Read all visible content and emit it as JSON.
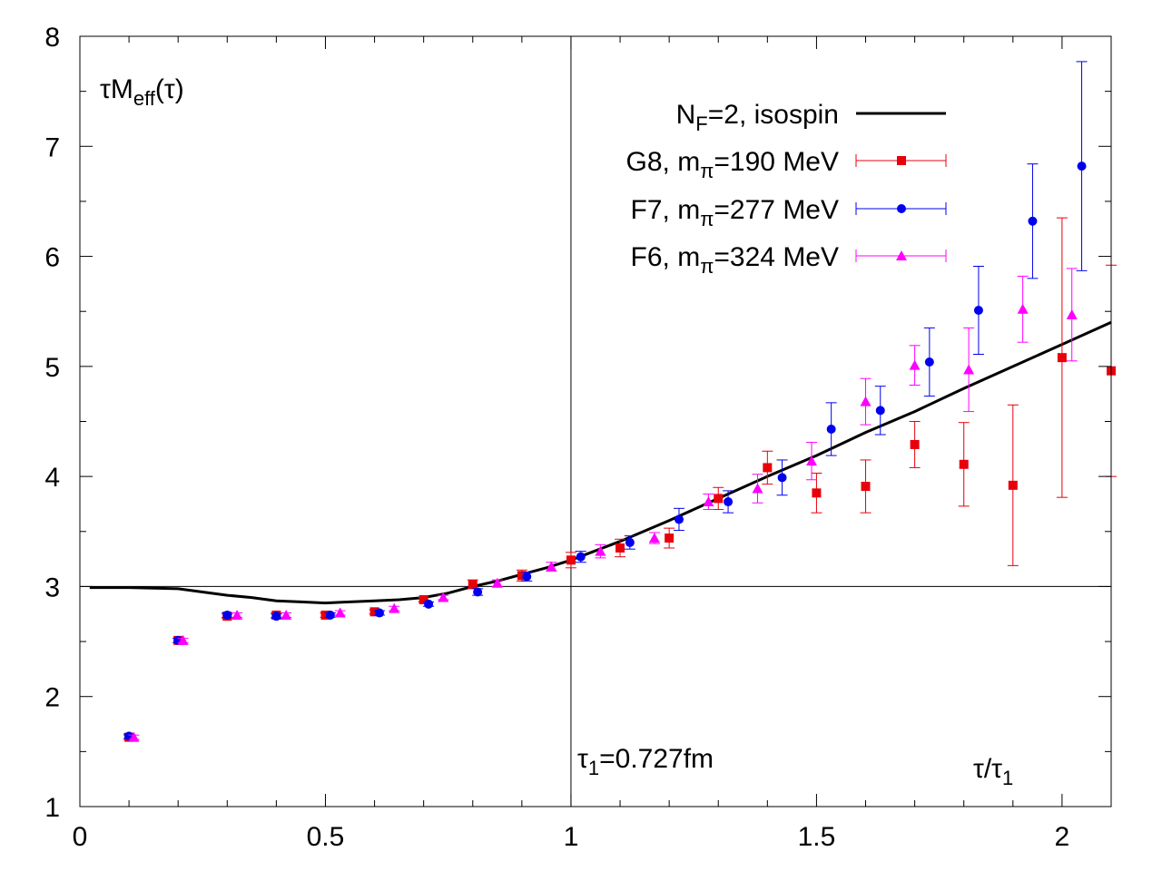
{
  "chart_data": {
    "type": "scatter",
    "title": "",
    "ylabel": "τM_eff(τ)",
    "xlabel": "τ/τ_1",
    "annotation": "τ_1=0.727fm",
    "xlim": [
      0,
      2.1
    ],
    "ylim": [
      1,
      8
    ],
    "x_ticks": [
      "0",
      "0.5",
      "1",
      "1.5",
      "2"
    ],
    "y_ticks": [
      "1",
      "2",
      "3",
      "4",
      "5",
      "6",
      "7",
      "8"
    ],
    "grid": false,
    "reference_lines": {
      "x": 1,
      "y": 3
    },
    "legend_position": "top-right",
    "series": [
      {
        "name": "N_F=2, isospin",
        "style": "line",
        "color": "#000000",
        "points": [
          [
            0.02,
            2.99
          ],
          [
            0.1,
            2.99
          ],
          [
            0.2,
            2.98
          ],
          [
            0.25,
            2.95
          ],
          [
            0.3,
            2.92
          ],
          [
            0.35,
            2.9
          ],
          [
            0.4,
            2.87
          ],
          [
            0.45,
            2.86
          ],
          [
            0.5,
            2.85
          ],
          [
            0.55,
            2.86
          ],
          [
            0.6,
            2.87
          ],
          [
            0.65,
            2.88
          ],
          [
            0.7,
            2.9
          ],
          [
            0.75,
            2.94
          ],
          [
            0.8,
            3.0
          ],
          [
            0.85,
            3.05
          ],
          [
            0.9,
            3.11
          ],
          [
            0.95,
            3.17
          ],
          [
            1.0,
            3.24
          ],
          [
            1.1,
            3.41
          ],
          [
            1.2,
            3.6
          ],
          [
            1.3,
            3.8
          ],
          [
            1.4,
            4.0
          ],
          [
            1.5,
            4.19
          ],
          [
            1.6,
            4.4
          ],
          [
            1.7,
            4.59
          ],
          [
            1.8,
            4.8
          ],
          [
            1.9,
            5.0
          ],
          [
            2.0,
            5.2
          ],
          [
            2.1,
            5.4
          ]
        ]
      },
      {
        "name": "G8, m_π=190 MeV",
        "style": "points",
        "marker": "square",
        "color": "#e8000b",
        "points": [
          [
            0.1,
            1.63,
            0.02
          ],
          [
            0.2,
            2.51,
            0.02
          ],
          [
            0.3,
            2.73,
            0.02
          ],
          [
            0.4,
            2.74,
            0.02
          ],
          [
            0.5,
            2.74,
            0.02
          ],
          [
            0.6,
            2.77,
            0.02
          ],
          [
            0.7,
            2.88,
            0.02
          ],
          [
            0.8,
            3.02,
            0.04
          ],
          [
            0.9,
            3.1,
            0.05
          ],
          [
            1.0,
            3.24,
            0.07
          ],
          [
            1.1,
            3.35,
            0.08
          ],
          [
            1.2,
            3.44,
            0.09
          ],
          [
            1.3,
            3.8,
            0.1
          ],
          [
            1.4,
            4.08,
            0.15
          ],
          [
            1.5,
            3.85,
            0.18
          ],
          [
            1.6,
            3.91,
            0.24
          ],
          [
            1.7,
            4.29,
            0.21
          ],
          [
            1.8,
            4.11,
            0.38
          ],
          [
            1.9,
            3.92,
            0.73
          ],
          [
            2.0,
            5.08,
            1.27
          ],
          [
            2.1,
            4.96,
            0.96
          ]
        ]
      },
      {
        "name": "F7, m_π=277 MeV",
        "style": "points",
        "marker": "circle",
        "color": "#0000ee",
        "points": [
          [
            0.1,
            1.64,
            0.02
          ],
          [
            0.2,
            2.51,
            0.02
          ],
          [
            0.3,
            2.74,
            0.02
          ],
          [
            0.4,
            2.73,
            0.02
          ],
          [
            0.51,
            2.74,
            0.02
          ],
          [
            0.61,
            2.76,
            0.02
          ],
          [
            0.71,
            2.84,
            0.02
          ],
          [
            0.81,
            2.95,
            0.03
          ],
          [
            0.91,
            3.09,
            0.04
          ],
          [
            1.02,
            3.27,
            0.05
          ],
          [
            1.12,
            3.4,
            0.06
          ],
          [
            1.22,
            3.61,
            0.1
          ],
          [
            1.32,
            3.77,
            0.1
          ],
          [
            1.43,
            3.99,
            0.16
          ],
          [
            1.53,
            4.43,
            0.24
          ],
          [
            1.63,
            4.6,
            0.22
          ],
          [
            1.73,
            5.04,
            0.31
          ],
          [
            1.83,
            5.51,
            0.4
          ],
          [
            1.94,
            6.32,
            0.52
          ],
          [
            2.04,
            6.82,
            0.95
          ]
        ]
      },
      {
        "name": "F6, m_π=324 MeV",
        "style": "points",
        "marker": "triangle",
        "color": "#ff00ff",
        "points": [
          [
            0.11,
            1.63,
            0.02
          ],
          [
            0.21,
            2.51,
            0.02
          ],
          [
            0.32,
            2.74,
            0.02
          ],
          [
            0.42,
            2.74,
            0.02
          ],
          [
            0.53,
            2.76,
            0.02
          ],
          [
            0.64,
            2.8,
            0.02
          ],
          [
            0.74,
            2.9,
            0.02
          ],
          [
            0.85,
            3.03,
            0.03
          ],
          [
            0.96,
            3.18,
            0.04
          ],
          [
            1.06,
            3.32,
            0.06
          ],
          [
            1.17,
            3.44,
            0.05
          ],
          [
            1.28,
            3.77,
            0.07
          ],
          [
            1.38,
            3.89,
            0.13
          ],
          [
            1.49,
            4.14,
            0.17
          ],
          [
            1.6,
            4.68,
            0.21
          ],
          [
            1.7,
            5.01,
            0.18
          ],
          [
            1.81,
            4.97,
            0.38
          ],
          [
            1.92,
            5.52,
            0.3
          ],
          [
            2.02,
            5.47,
            0.42
          ]
        ]
      }
    ]
  }
}
